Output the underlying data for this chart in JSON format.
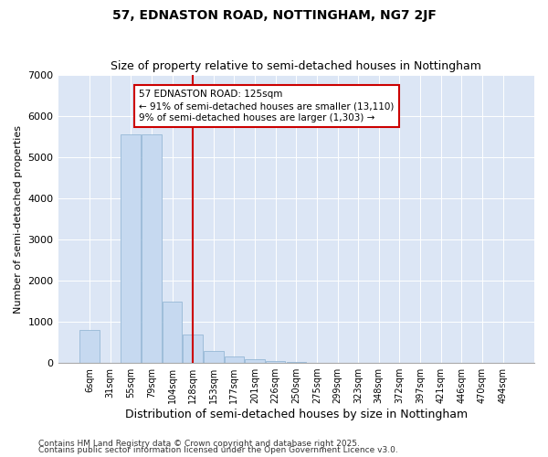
{
  "title": "57, EDNASTON ROAD, NOTTINGHAM, NG7 2JF",
  "subtitle": "Size of property relative to semi-detached houses in Nottingham",
  "xlabel": "Distribution of semi-detached houses by size in Nottingham",
  "ylabel": "Number of semi-detached properties",
  "categories": [
    "6sqm",
    "31sqm",
    "55sqm",
    "79sqm",
    "104sqm",
    "128sqm",
    "153sqm",
    "177sqm",
    "201sqm",
    "226sqm",
    "250sqm",
    "275sqm",
    "299sqm",
    "323sqm",
    "348sqm",
    "372sqm",
    "397sqm",
    "421sqm",
    "446sqm",
    "470sqm",
    "494sqm"
  ],
  "values": [
    800,
    0,
    5550,
    5550,
    1500,
    700,
    280,
    150,
    100,
    50,
    30,
    5,
    0,
    0,
    0,
    0,
    0,
    0,
    0,
    0,
    0
  ],
  "bar_color": "#c6d9f0",
  "bar_edge_color": "#8ab0d0",
  "property_line_x": 5,
  "annotation_text": "57 EDNASTON ROAD: 125sqm\n← 91% of semi-detached houses are smaller (13,110)\n9% of semi-detached houses are larger (1,303) →",
  "annotation_box_color": "#ffffff",
  "annotation_box_edge": "#cc0000",
  "vline_color": "#cc0000",
  "ylim": [
    0,
    7000
  ],
  "yticks": [
    0,
    1000,
    2000,
    3000,
    4000,
    5000,
    6000,
    7000
  ],
  "plot_background": "#dce6f5",
  "fig_background": "#ffffff",
  "footer_line1": "Contains HM Land Registry data © Crown copyright and database right 2025.",
  "footer_line2": "Contains public sector information licensed under the Open Government Licence v3.0.",
  "title_fontsize": 10,
  "subtitle_fontsize": 9,
  "annotation_fontsize": 7.5,
  "tick_fontsize": 7,
  "ylabel_fontsize": 8,
  "xlabel_fontsize": 9,
  "footer_fontsize": 6.5
}
